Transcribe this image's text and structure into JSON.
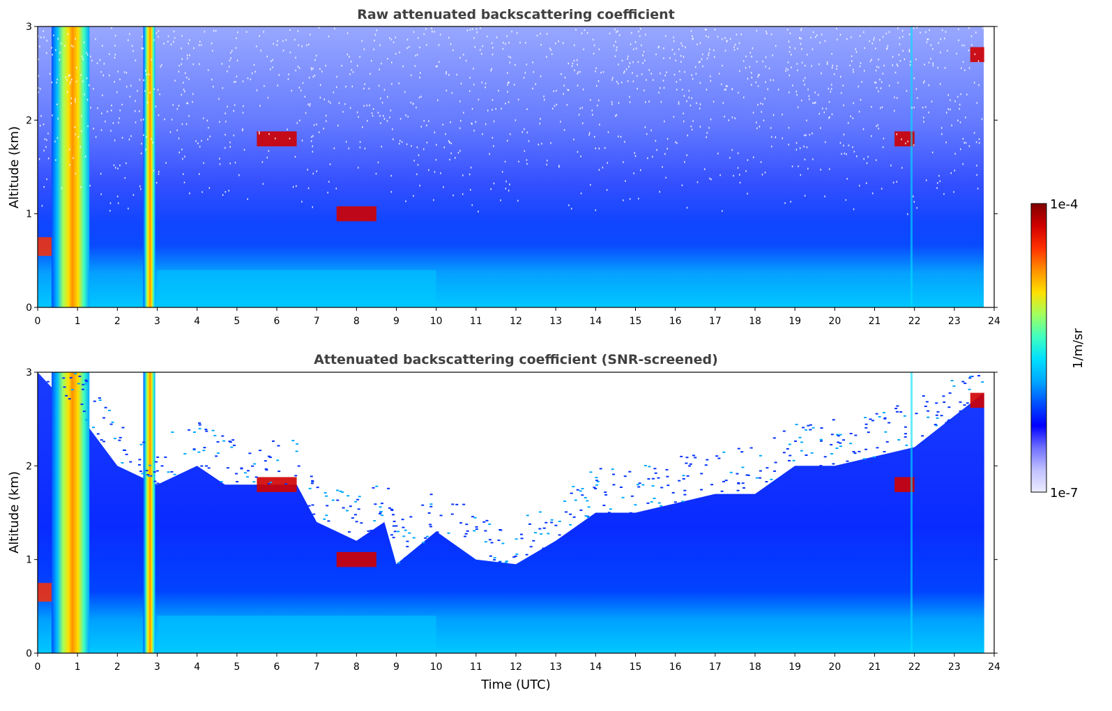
{
  "chart_data": [
    {
      "type": "heatmap",
      "title": "Raw attenuated backscattering coefficient",
      "xlabel": "",
      "ylabel": "Altitude (km)",
      "xlim": [
        0,
        24
      ],
      "ylim": [
        0,
        3
      ],
      "xticks": [
        "0",
        "1",
        "2",
        "3",
        "4",
        "5",
        "6",
        "7",
        "8",
        "9",
        "10",
        "11",
        "12",
        "13",
        "14",
        "15",
        "16",
        "17",
        "18",
        "19",
        "20",
        "21",
        "22",
        "23",
        "24"
      ],
      "yticks": [
        "0",
        "1",
        "2",
        "3"
      ],
      "colorscale": "jet (log)",
      "features": [
        {
          "desc": "dense layers / saturated columns",
          "time_range": [
            0.4,
            1.3
          ],
          "alt_range": [
            0,
            3
          ]
        },
        {
          "desc": "dense column",
          "time_range": [
            2.65,
            2.9
          ],
          "alt_range": [
            0,
            3
          ]
        },
        {
          "desc": "elevated layer",
          "time_range": [
            5.5,
            6.5
          ],
          "alt_km": 1.8
        },
        {
          "desc": "elevated layer",
          "time_range": [
            7.5,
            8.5
          ],
          "alt_km": 1.0
        },
        {
          "desc": "elevated layer",
          "time_range": [
            21.5,
            22.0
          ],
          "alt_km": 1.8
        },
        {
          "desc": "elevated layer",
          "time_range": [
            23.4,
            23.8
          ],
          "alt_km": 2.7
        }
      ]
    },
    {
      "type": "heatmap",
      "title": "Attenuated backscattering coefficient (SNR-screened)",
      "xlabel": "Time (UTC)",
      "ylabel": "Altitude (km)",
      "xlim": [
        0,
        24
      ],
      "ylim": [
        0,
        3
      ],
      "xticks": [
        "0",
        "1",
        "2",
        "3",
        "4",
        "5",
        "6",
        "7",
        "8",
        "9",
        "10",
        "11",
        "12",
        "13",
        "14",
        "15",
        "16",
        "17",
        "18",
        "19",
        "20",
        "21",
        "22",
        "23",
        "24"
      ],
      "yticks": [
        "0",
        "1",
        "2",
        "3"
      ],
      "colorscale": "jet (log)",
      "screened_top_km": [
        [
          0,
          3.0
        ],
        [
          1.3,
          2.4
        ],
        [
          2.0,
          2.0
        ],
        [
          3.0,
          1.8
        ],
        [
          4.0,
          2.0
        ],
        [
          4.7,
          1.8
        ],
        [
          6.5,
          1.8
        ],
        [
          7.0,
          1.4
        ],
        [
          8.0,
          1.2
        ],
        [
          8.7,
          1.4
        ],
        [
          9.0,
          0.95
        ],
        [
          10.0,
          1.3
        ],
        [
          11.0,
          1.0
        ],
        [
          12.0,
          0.95
        ],
        [
          13.0,
          1.2
        ],
        [
          14.0,
          1.5
        ],
        [
          15.0,
          1.5
        ],
        [
          16.0,
          1.6
        ],
        [
          17.0,
          1.7
        ],
        [
          18.0,
          1.7
        ],
        [
          19.0,
          2.0
        ],
        [
          20.0,
          2.0
        ],
        [
          21.0,
          2.1
        ],
        [
          22.0,
          2.2
        ],
        [
          23.8,
          2.8
        ]
      ]
    }
  ],
  "colorbar": {
    "label": "1/m/sr",
    "max_label": "1e-4",
    "min_label": "1e-7",
    "colors": [
      "#ececff",
      "#c0c0ff",
      "#7070ff",
      "#0000ff",
      "#0050ff",
      "#00a8ff",
      "#00e0ff",
      "#40ffc0",
      "#a0ff60",
      "#ffe000",
      "#ff9000",
      "#ff3000",
      "#d00000",
      "#800000"
    ]
  }
}
